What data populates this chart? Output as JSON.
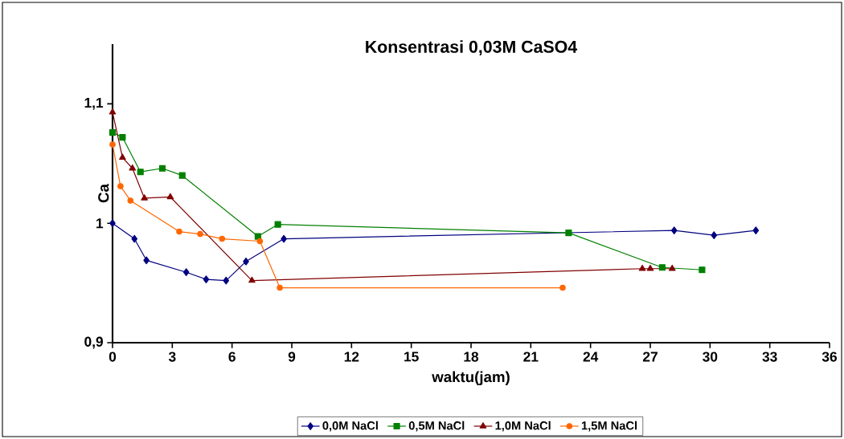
{
  "chart_data": {
    "type": "line",
    "title": "Konsentrasi 0,03M CaSO4",
    "xlabel": "waktu(jam)",
    "ylabel": "Ca",
    "xlim": [
      0,
      36
    ],
    "xticks": [
      0,
      3,
      6,
      9,
      12,
      15,
      18,
      21,
      24,
      27,
      30,
      33,
      36
    ],
    "ylim": [
      0.9,
      1.15
    ],
    "yticks": [
      {
        "value": 0.9,
        "label": "0,9"
      },
      {
        "value": 1,
        "label": "1"
      },
      {
        "value": 1.1,
        "label": "1,1"
      }
    ],
    "grid": false,
    "legend": "bottom",
    "line_style": "solid",
    "series": [
      {
        "name": "0,0M NaCl",
        "color": "#000080",
        "marker": "diamond",
        "x": [
          0,
          1.1,
          1.7,
          3.7,
          4.7,
          5.7,
          6.7,
          8.6,
          28.2,
          30.2,
          32.3
        ],
        "values": [
          1.0,
          0.987,
          0.969,
          0.959,
          0.953,
          0.952,
          0.968,
          0.987,
          0.994,
          0.99,
          0.994
        ]
      },
      {
        "name": "0,5M NaCl",
        "color": "#008000",
        "marker": "square",
        "x": [
          0,
          0.5,
          1.4,
          2.5,
          3.5,
          7.3,
          8.3,
          22.9,
          27.6,
          29.6
        ],
        "values": [
          1.076,
          1.072,
          1.043,
          1.046,
          1.04,
          0.989,
          0.999,
          0.992,
          0.963,
          0.961
        ]
      },
      {
        "name": "1,0M NaCl",
        "color": "#800000",
        "marker": "triangle",
        "x": [
          0,
          0.5,
          1.0,
          1.6,
          2.9,
          7.0,
          26.6,
          27.0,
          28.1
        ],
        "values": [
          1.093,
          1.055,
          1.046,
          1.021,
          1.022,
          0.952,
          0.962,
          0.962,
          0.962
        ]
      },
      {
        "name": "1,5M NaCl",
        "color": "#ff6600",
        "marker": "circle",
        "x": [
          0,
          0.4,
          0.9,
          3.35,
          4.4,
          5.5,
          7.4,
          8.4,
          22.6
        ],
        "values": [
          1.066,
          1.031,
          1.019,
          0.993,
          0.991,
          0.987,
          0.985,
          0.946,
          0.946
        ]
      }
    ]
  }
}
